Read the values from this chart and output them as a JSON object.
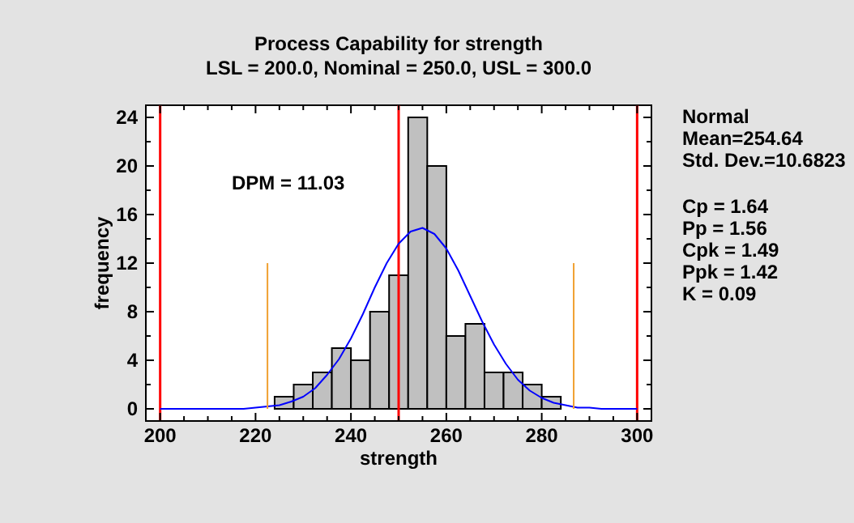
{
  "chart_data": {
    "type": "histogram",
    "title": "Process Capability for strength",
    "subtitle": "LSL = 200.0, Nominal = 250.0, USL = 300.0",
    "xlabel": "strength",
    "ylabel": "frequency",
    "bins": [
      224,
      228,
      232,
      236,
      240,
      244,
      248,
      252,
      256,
      260,
      264,
      268,
      272,
      276,
      280,
      284
    ],
    "series": [
      {
        "color": "#c0c0c0",
        "values": [
          1,
          2,
          3,
          5,
          4,
          8,
          11,
          24,
          20,
          6,
          7,
          3,
          3,
          2,
          1
        ]
      },
      {
        "type": "line",
        "color": "#0000ff",
        "x": [
          200,
          210,
          215,
          217.5,
          220,
          222.5,
          225,
          227.5,
          230,
          232.5,
          235,
          237.5,
          240,
          242.5,
          245,
          247.5,
          250,
          252.5,
          255,
          257.5,
          260,
          262.5,
          265,
          267.5,
          270,
          272.5,
          275,
          277.5,
          280,
          282.5,
          285,
          287.5,
          290,
          292.5,
          300
        ],
        "values": [
          0,
          0,
          0,
          0,
          0.1,
          0.2,
          0.3,
          0.6,
          1.0,
          1.7,
          2.8,
          4.1,
          5.8,
          7.8,
          10.0,
          12.0,
          13.6,
          14.6,
          14.9,
          14.4,
          13.2,
          11.4,
          9.3,
          7.2,
          5.3,
          3.7,
          2.4,
          1.5,
          0.9,
          0.5,
          0.3,
          0.1,
          0.1,
          0,
          0
        ]
      },
      {
        "type": "line",
        "color": "#f0a030",
        "x": [
          222.5,
          222.5
        ],
        "values": [
          0,
          12
        ]
      },
      {
        "type": "line",
        "color": "#f0a030",
        "x": [
          286.7,
          286.7
        ],
        "values": [
          0,
          12
        ]
      }
    ],
    "ref_lines": [
      {
        "axis": "x",
        "value": 200,
        "color": "#ff0000"
      },
      {
        "axis": "x",
        "value": 250,
        "color": "#ff0000"
      },
      {
        "axis": "x",
        "value": 300,
        "color": "#ff0000"
      }
    ],
    "xlim": [
      197,
      303
    ],
    "xticks": [
      200,
      {
        "value": 205,
        "label": null
      },
      {
        "value": 210,
        "label": null
      },
      {
        "value": 215,
        "label": null
      },
      220,
      {
        "value": 225,
        "label": null
      },
      {
        "value": 230,
        "label": null
      },
      {
        "value": 235,
        "label": null
      },
      240,
      {
        "value": 245,
        "label": null
      },
      {
        "value": 250,
        "label": null
      },
      {
        "value": 255,
        "label": null
      },
      260,
      {
        "value": 265,
        "label": null
      },
      {
        "value": 270,
        "label": null
      },
      {
        "value": 275,
        "label": null
      },
      280,
      {
        "value": 285,
        "label": null
      },
      {
        "value": 290,
        "label": null
      },
      {
        "value": 295,
        "label": null
      },
      300
    ],
    "ylim": [
      -1,
      25
    ],
    "yticks": [
      0,
      {
        "value": 2,
        "label": null
      },
      4,
      {
        "value": 6,
        "label": null
      },
      8,
      {
        "value": 10,
        "label": null
      },
      12,
      {
        "value": 14,
        "label": null
      },
      16,
      {
        "value": 18,
        "label": null
      },
      20,
      {
        "value": 22,
        "label": null
      },
      24
    ],
    "annotations": [
      "DPM = 11.03",
      "Normal",
      "Mean=254.64",
      "Std. Dev.=10.6823",
      "Cp = 1.64",
      "Pp = 1.56",
      "Cpk = 1.49",
      "Ppk = 1.42",
      "K = 0.09"
    ]
  }
}
